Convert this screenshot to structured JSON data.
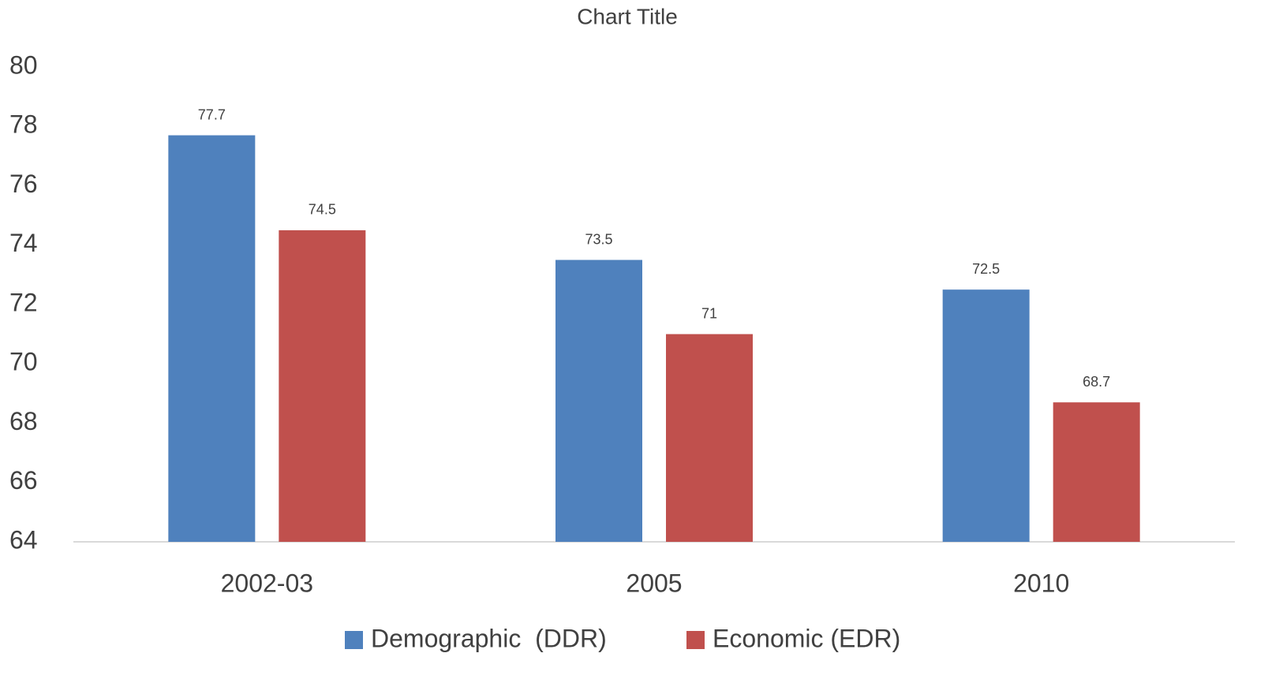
{
  "chart_data": {
    "type": "bar",
    "title": "Chart Title",
    "categories": [
      "2002-03",
      "2005",
      "2010"
    ],
    "series": [
      {
        "name": "Demographic  (DDR)",
        "color": "#4f81bd",
        "values": [
          77.7,
          73.5,
          72.5
        ]
      },
      {
        "name": "Economic (EDR)",
        "color": "#c0504d",
        "values": [
          74.5,
          71,
          68.7
        ]
      }
    ],
    "ylim": [
      64,
      80
    ],
    "yticks": [
      64,
      66,
      68,
      70,
      72,
      74,
      76,
      78,
      80
    ],
    "grid": false,
    "legend": "bottom"
  }
}
